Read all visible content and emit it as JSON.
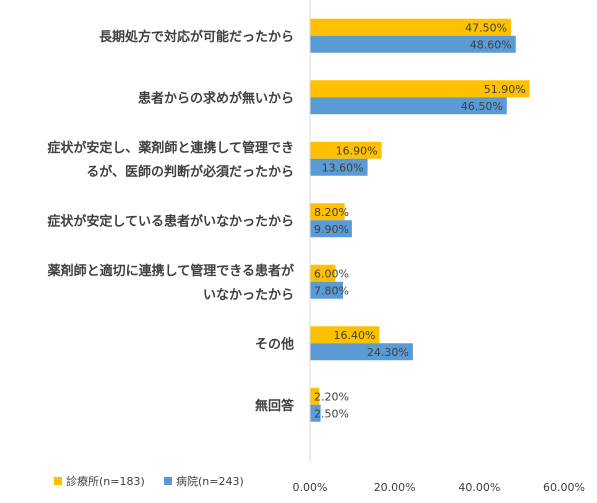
{
  "chart_data": {
    "type": "bar",
    "orientation": "horizontal",
    "categories": [
      [
        "長期処方で対応が可能だったから"
      ],
      [
        "患者からの求めが無いから"
      ],
      [
        "症状が安定し、薬剤師と連携して管理でき",
        "るが、医師の判断が必須だったから"
      ],
      [
        "症状が安定している患者がいなかったから"
      ],
      [
        "薬剤師と適切に連携して管理できる患者が",
        "いなかったから"
      ],
      [
        "その他"
      ],
      [
        "無回答"
      ]
    ],
    "series": [
      {
        "name": "診療所(n=183)",
        "color": "#FFC000",
        "values": [
          47.5,
          51.9,
          16.9,
          8.2,
          6.0,
          16.4,
          2.2
        ],
        "labels": [
          "47.50%",
          "51.90%",
          "16.90%",
          "8.20%",
          "6.00%",
          "16.40%",
          "2.20%"
        ]
      },
      {
        "name": "病院(n=243)",
        "color": "#5B9BD5",
        "values": [
          48.6,
          46.5,
          13.6,
          9.9,
          7.8,
          24.3,
          2.5
        ],
        "labels": [
          "48.60%",
          "46.50%",
          "13.60%",
          "9.90%",
          "7.80%",
          "24.30%",
          "2.50%"
        ]
      }
    ],
    "xlim": [
      0,
      60
    ],
    "xticks": [
      "0.00%",
      "20.00%",
      "40.00%",
      "60.00%"
    ],
    "legend_position": "bottom-left",
    "grid": false
  }
}
